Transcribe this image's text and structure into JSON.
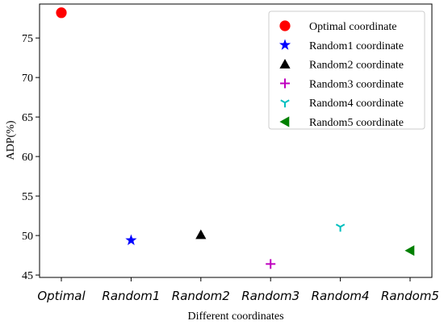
{
  "chart_data": {
    "type": "scatter",
    "title": "",
    "xlabel": "Different coordinates",
    "ylabel": "ADP(%)",
    "categories": [
      "Optimal",
      "Random1",
      "Random2",
      "Random3",
      "Random4",
      "Random5"
    ],
    "ylim": [
      44.7,
      79.3
    ],
    "yticks": [
      45,
      50,
      55,
      60,
      65,
      70,
      75
    ],
    "grid": false,
    "legend_position": "top-right",
    "series": [
      {
        "name": "Optimal coordinate",
        "marker": "circle",
        "color": "#ff0000",
        "x": "Optimal",
        "y": 78.2
      },
      {
        "name": "Random1 coordinate",
        "marker": "star",
        "color": "#0000ff",
        "x": "Random1",
        "y": 49.4
      },
      {
        "name": "Random2 coordinate",
        "marker": "triangle",
        "color": "#000000",
        "x": "Random2",
        "y": 50.1
      },
      {
        "name": "Random3 coordinate",
        "marker": "plus",
        "color": "#bf00bf",
        "x": "Random3",
        "y": 46.4
      },
      {
        "name": "Random4 coordinate",
        "marker": "tri-down",
        "color": "#00bfbf",
        "x": "Random4",
        "y": 51.1
      },
      {
        "name": "Random5 coordinate",
        "marker": "triangle-left",
        "color": "#008000",
        "x": "Random5",
        "y": 48.1
      }
    ]
  }
}
